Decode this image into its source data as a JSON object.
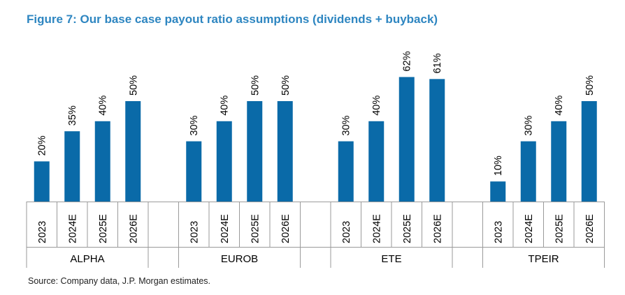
{
  "title": "Figure 7: Our base case payout ratio assumptions (dividends + buyback)",
  "source": "Source: Company data, J.P. Morgan estimates.",
  "colors": {
    "bar": "#0a6aa8",
    "title": "#2e86c1",
    "axis": "#9a9a9a"
  },
  "chart_data": {
    "type": "bar",
    "title": "Figure 7: Our base case payout ratio assumptions (dividends + buyback)",
    "xlabel": "",
    "ylabel": "",
    "ylim": [
      0,
      70
    ],
    "grid": false,
    "value_suffix": "%",
    "groups": [
      {
        "name": "ALPHA",
        "categories": [
          "2023",
          "2024E",
          "2025E",
          "2026E"
        ],
        "values": [
          20,
          35,
          40,
          50
        ],
        "labels": [
          "20%",
          "35%",
          "40%",
          "50%"
        ]
      },
      {
        "name": "EUROB",
        "categories": [
          "2023",
          "2024E",
          "2025E",
          "2026E"
        ],
        "values": [
          30,
          40,
          50,
          50
        ],
        "labels": [
          "30%",
          "40%",
          "50%",
          "50%"
        ]
      },
      {
        "name": "ETE",
        "categories": [
          "2023",
          "2024E",
          "2025E",
          "2026E"
        ],
        "values": [
          30,
          40,
          62,
          61
        ],
        "labels": [
          "30%",
          "40%",
          "62%",
          "61%"
        ]
      },
      {
        "name": "TPEIR",
        "categories": [
          "2023",
          "2024E",
          "2025E",
          "2026E"
        ],
        "values": [
          10,
          30,
          40,
          50
        ],
        "labels": [
          "10%",
          "30%",
          "40%",
          "50%"
        ]
      }
    ]
  }
}
